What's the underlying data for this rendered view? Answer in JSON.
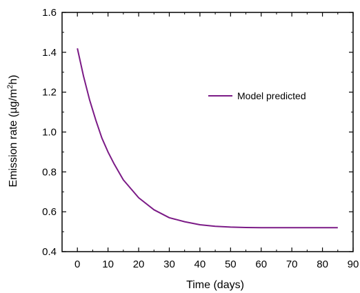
{
  "chart_data": {
    "type": "line",
    "xlabel": "Time (days)",
    "ylabel_parts": {
      "prefix": "Emission rate (",
      "mu": "µ",
      "mid": "g/m",
      "sup": "2",
      "suffix": "h)"
    },
    "xlim": [
      -5,
      90
    ],
    "ylim": [
      0.4,
      1.6
    ],
    "xticks": [
      0,
      10,
      20,
      30,
      40,
      50,
      60,
      70,
      80,
      90
    ],
    "xtick_labels": [
      "0",
      "10",
      "20",
      "30",
      "40",
      "50",
      "60",
      "70",
      "80",
      "90"
    ],
    "yticks": [
      0.4,
      0.6,
      0.8,
      1.0,
      1.2,
      1.4,
      1.6
    ],
    "ytick_labels": [
      "0.4",
      "0.6",
      "0.8",
      "1.0",
      "1.2",
      "1.4",
      "1.6"
    ],
    "grid": false,
    "legend_position": "upper-right",
    "series": [
      {
        "name": "Model predicted",
        "color": "#7b1a86",
        "x": [
          0,
          2,
          4,
          6,
          8,
          10,
          12,
          15,
          20,
          25,
          30,
          35,
          40,
          45,
          50,
          55,
          60,
          65,
          70,
          75,
          80,
          85
        ],
        "y": [
          1.42,
          1.28,
          1.16,
          1.06,
          0.97,
          0.9,
          0.84,
          0.76,
          0.67,
          0.61,
          0.57,
          0.55,
          0.535,
          0.527,
          0.523,
          0.521,
          0.52,
          0.52,
          0.52,
          0.52,
          0.52,
          0.52
        ]
      }
    ]
  }
}
